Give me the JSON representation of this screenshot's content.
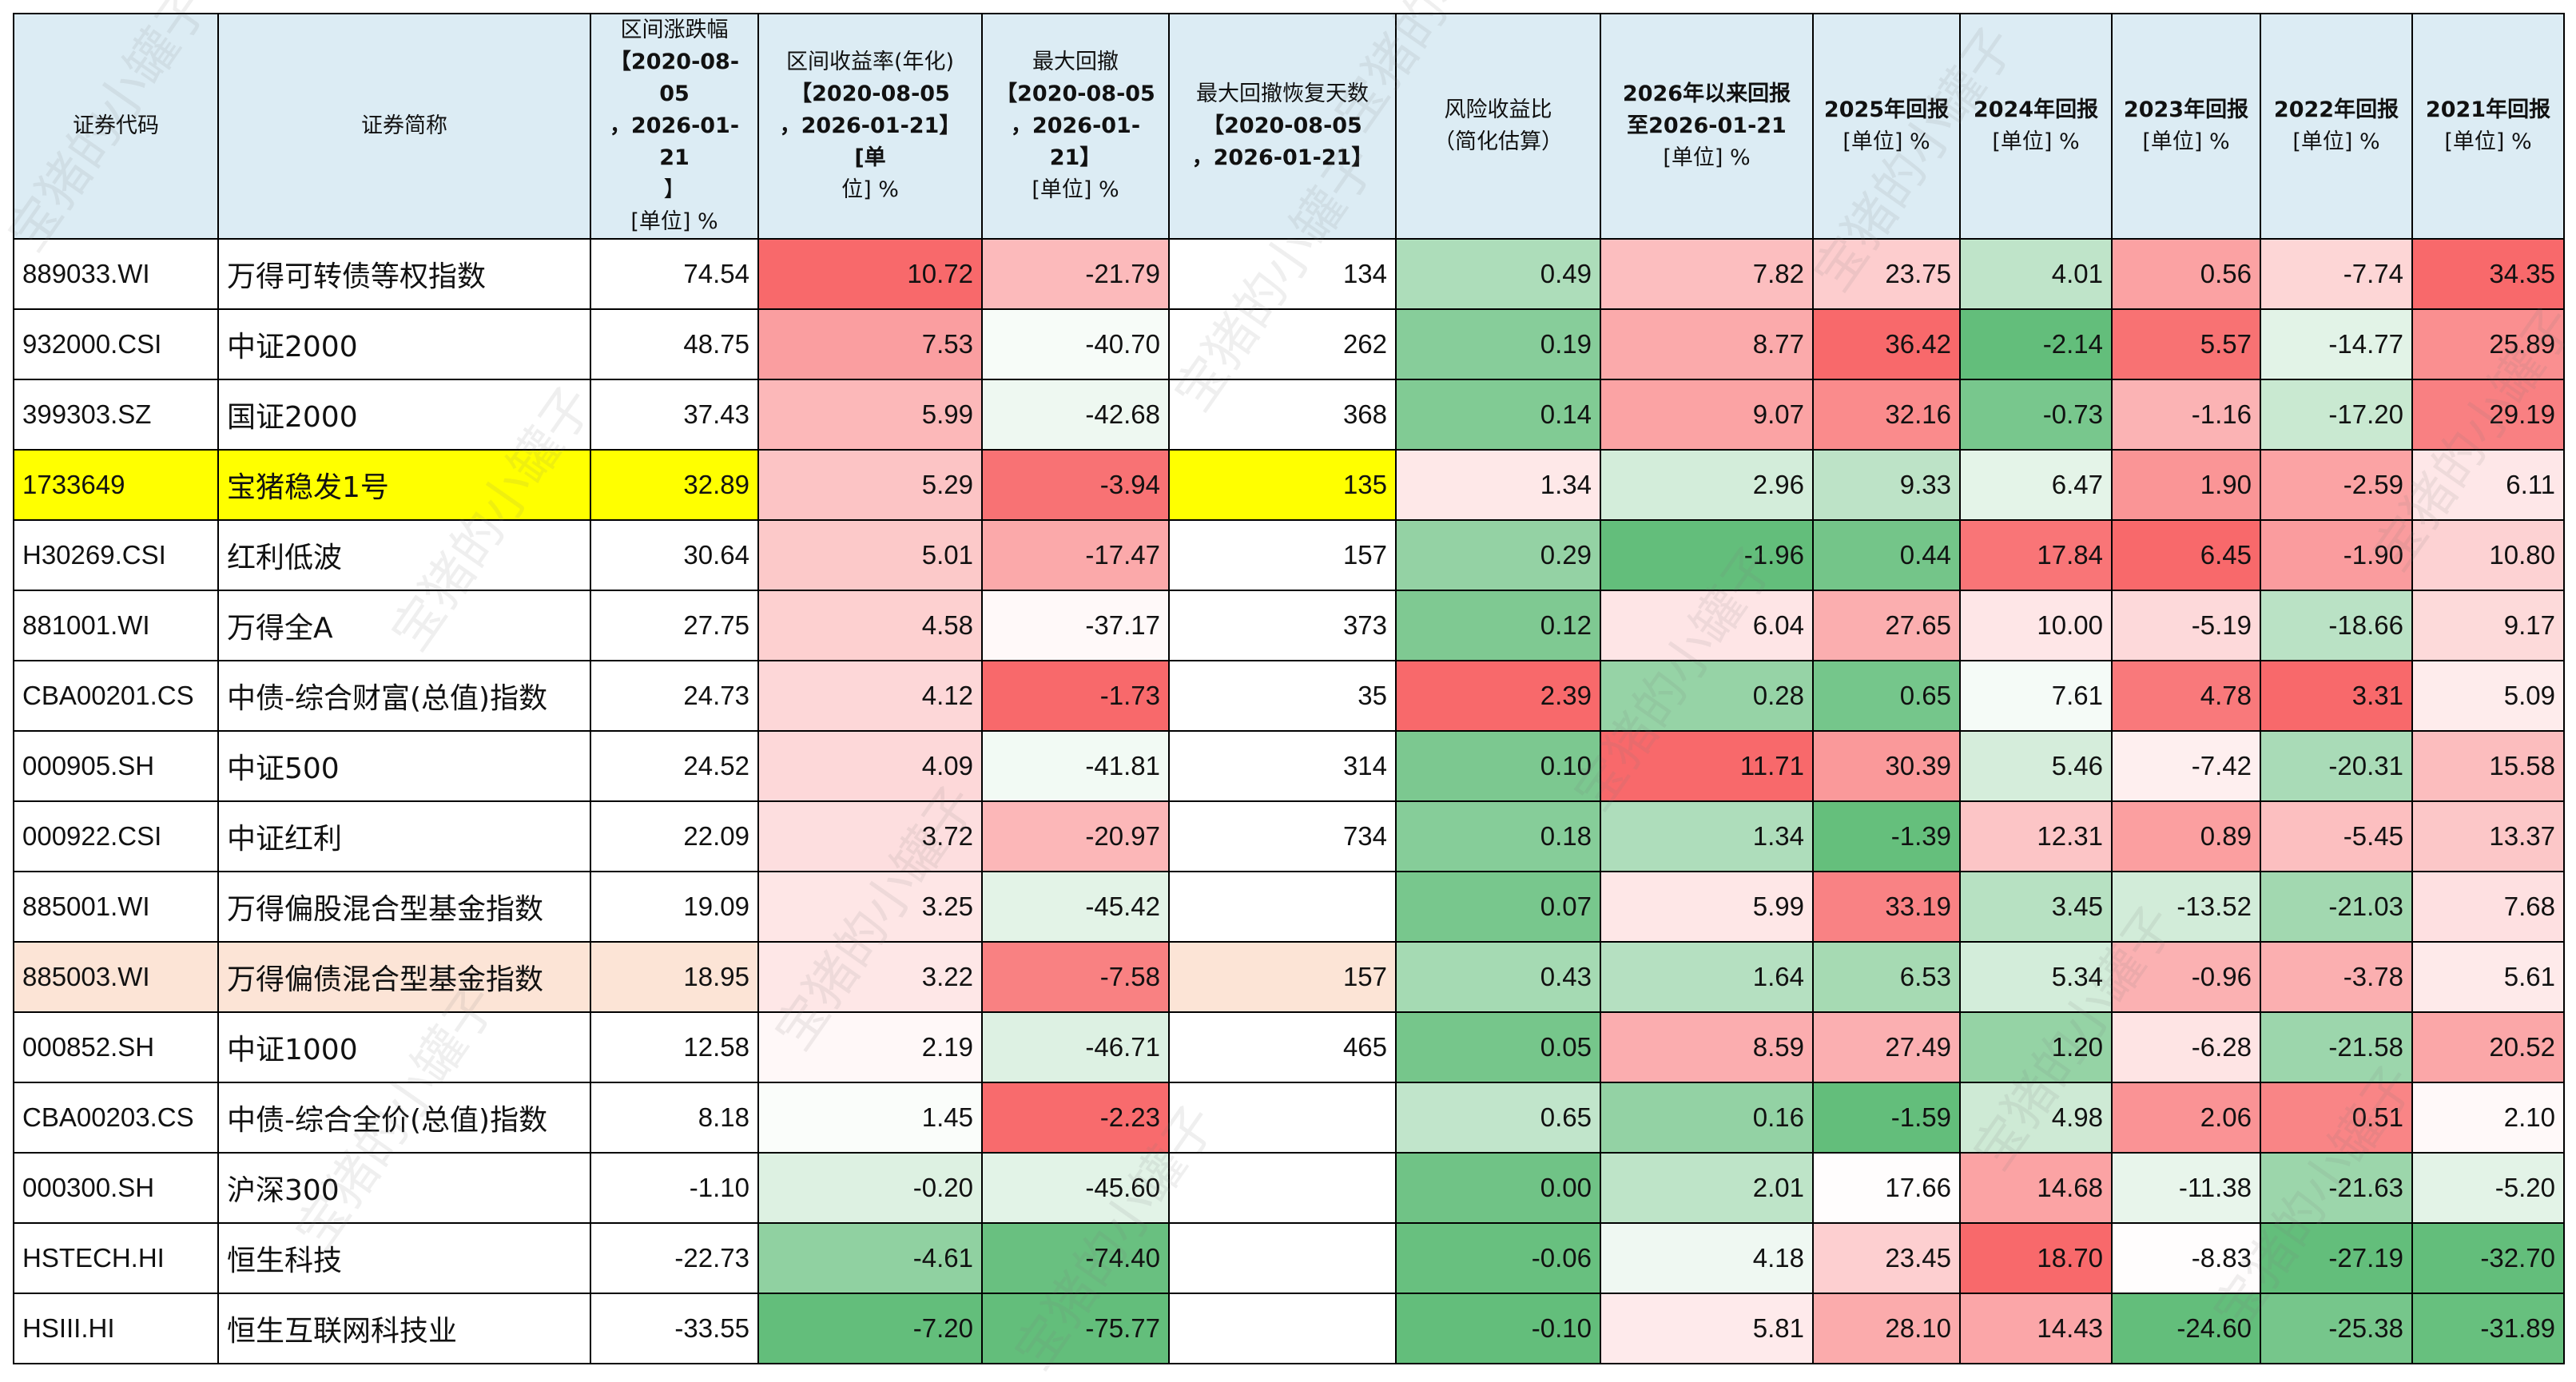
{
  "headers": [
    {
      "key": "code",
      "lines": [
        "证券代码"
      ]
    },
    {
      "key": "name",
      "lines": [
        "证券简称"
      ]
    },
    {
      "key": "chg",
      "lines": [
        "区间涨跌幅",
        "【2020-08-05",
        "，2026-01-21",
        "】",
        "[单位] %"
      ]
    },
    {
      "key": "ann",
      "lines": [
        "区间收益率(年化)",
        "【2020-08-05",
        "，2026-01-21】[单",
        "位] %"
      ]
    },
    {
      "key": "mdd",
      "lines": [
        "最大回撤",
        "【2020-08-05",
        "，2026-01-21】",
        "[单位] %"
      ]
    },
    {
      "key": "rec",
      "lines": [
        "最大回撤恢复天数",
        "【2020-08-05",
        "，2026-01-21】"
      ]
    },
    {
      "key": "rr",
      "lines": [
        "风险收益比",
        "（简化估算）"
      ]
    },
    {
      "key": "y26",
      "lines": [
        "2026年以来回报",
        "至2026-01-21",
        "[单位] %"
      ]
    },
    {
      "key": "y25",
      "lines": [
        "2025年回报",
        "[单位] %"
      ]
    },
    {
      "key": "y24",
      "lines": [
        "2024年回报",
        "[单位] %"
      ]
    },
    {
      "key": "y23",
      "lines": [
        "2023年回报",
        "[单位] %"
      ]
    },
    {
      "key": "y22",
      "lines": [
        "2022年回报",
        "[单位] %"
      ]
    },
    {
      "key": "y21",
      "lines": [
        "2021年回报",
        "[单位] %"
      ]
    }
  ],
  "rows": [
    {
      "code": "889033.WI",
      "name": "万得可转债等权指数",
      "chg": "74.54",
      "ann": "10.72",
      "mdd": "-21.79",
      "rec": "134",
      "rr": "0.49",
      "y26": "7.82",
      "y25": "23.75",
      "y24": "4.01",
      "y23": "0.56",
      "y22": "-7.74",
      "y21": "34.35"
    },
    {
      "code": "932000.CSI",
      "name": "中证2000",
      "chg": "48.75",
      "ann": "7.53",
      "mdd": "-40.70",
      "rec": "262",
      "rr": "0.19",
      "y26": "8.77",
      "y25": "36.42",
      "y24": "-2.14",
      "y23": "5.57",
      "y22": "-14.77",
      "y21": "25.89"
    },
    {
      "code": "399303.SZ",
      "name": "国证2000",
      "chg": "37.43",
      "ann": "5.99",
      "mdd": "-42.68",
      "rec": "368",
      "rr": "0.14",
      "y26": "9.07",
      "y25": "32.16",
      "y24": "-0.73",
      "y23": "-1.16",
      "y22": "-17.20",
      "y21": "29.19"
    },
    {
      "code": "1733649",
      "name": "宝猪稳发1号",
      "chg": "32.89",
      "ann": "5.29",
      "mdd": "-3.94",
      "rec": "135",
      "rr": "1.34",
      "y26": "2.96",
      "y25": "9.33",
      "y24": "6.47",
      "y23": "1.90",
      "y22": "-2.59",
      "y21": "6.11",
      "highlight": "yellow"
    },
    {
      "code": "H30269.CSI",
      "name": "红利低波",
      "chg": "30.64",
      "ann": "5.01",
      "mdd": "-17.47",
      "rec": "157",
      "rr": "0.29",
      "y26": "-1.96",
      "y25": "0.44",
      "y24": "17.84",
      "y23": "6.45",
      "y22": "-1.90",
      "y21": "10.80"
    },
    {
      "code": "881001.WI",
      "name": "万得全A",
      "chg": "27.75",
      "ann": "4.58",
      "mdd": "-37.17",
      "rec": "373",
      "rr": "0.12",
      "y26": "6.04",
      "y25": "27.65",
      "y24": "10.00",
      "y23": "-5.19",
      "y22": "-18.66",
      "y21": "9.17"
    },
    {
      "code": "CBA00201.CS",
      "name": "中债-综合财富(总值)指数",
      "chg": "24.73",
      "ann": "4.12",
      "mdd": "-1.73",
      "rec": "35",
      "rr": "2.39",
      "y26": "0.28",
      "y25": "0.65",
      "y24": "7.61",
      "y23": "4.78",
      "y22": "3.31",
      "y21": "5.09"
    },
    {
      "code": "000905.SH",
      "name": "中证500",
      "chg": "24.52",
      "ann": "4.09",
      "mdd": "-41.81",
      "rec": "314",
      "rr": "0.10",
      "y26": "11.71",
      "y25": "30.39",
      "y24": "5.46",
      "y23": "-7.42",
      "y22": "-20.31",
      "y21": "15.58"
    },
    {
      "code": "000922.CSI",
      "name": "中证红利",
      "chg": "22.09",
      "ann": "3.72",
      "mdd": "-20.97",
      "rec": "734",
      "rr": "0.18",
      "y26": "1.34",
      "y25": "-1.39",
      "y24": "12.31",
      "y23": "0.89",
      "y22": "-5.45",
      "y21": "13.37"
    },
    {
      "code": "885001.WI",
      "name": "万得偏股混合型基金指数",
      "chg": "19.09",
      "ann": "3.25",
      "mdd": "-45.42",
      "rec": "",
      "rr": "0.07",
      "y26": "5.99",
      "y25": "33.19",
      "y24": "3.45",
      "y23": "-13.52",
      "y22": "-21.03",
      "y21": "7.68"
    },
    {
      "code": "885003.WI",
      "name": "万得偏债混合型基金指数",
      "chg": "18.95",
      "ann": "3.22",
      "mdd": "-7.58",
      "rec": "157",
      "rr": "0.43",
      "y26": "1.64",
      "y25": "6.53",
      "y24": "5.34",
      "y23": "-0.96",
      "y22": "-3.78",
      "y21": "5.61",
      "highlight": "peach"
    },
    {
      "code": "000852.SH",
      "name": "中证1000",
      "chg": "12.58",
      "ann": "2.19",
      "mdd": "-46.71",
      "rec": "465",
      "rr": "0.05",
      "y26": "8.59",
      "y25": "27.49",
      "y24": "1.20",
      "y23": "-6.28",
      "y22": "-21.58",
      "y21": "20.52"
    },
    {
      "code": "CBA00203.CS",
      "name": "中债-综合全价(总值)指数",
      "chg": "8.18",
      "ann": "1.45",
      "mdd": "-2.23",
      "rec": "",
      "rr": "0.65",
      "y26": "0.16",
      "y25": "-1.59",
      "y24": "4.98",
      "y23": "2.06",
      "y22": "0.51",
      "y21": "2.10"
    },
    {
      "code": "000300.SH",
      "name": "沪深300",
      "chg": "-1.10",
      "ann": "-0.20",
      "mdd": "-45.60",
      "rec": "",
      "rr": "0.00",
      "y26": "2.01",
      "y25": "17.66",
      "y24": "14.68",
      "y23": "-11.38",
      "y22": "-21.63",
      "y21": "-5.20"
    },
    {
      "code": "HSTECH.HI",
      "name": "恒生科技",
      "chg": "-22.73",
      "ann": "-4.61",
      "mdd": "-74.40",
      "rec": "",
      "rr": "-0.06",
      "y26": "4.18",
      "y25": "23.45",
      "y24": "18.70",
      "y23": "-8.83",
      "y22": "-27.19",
      "y21": "-32.70"
    },
    {
      "code": "HSIII.HI",
      "name": "恒生互联网科技业",
      "chg": "-33.55",
      "ann": "-7.20",
      "mdd": "-75.77",
      "rec": "",
      "rr": "-0.10",
      "y26": "5.81",
      "y25": "28.10",
      "y24": "14.43",
      "y23": "-24.60",
      "y22": "-25.38",
      "y21": "-31.89"
    }
  ],
  "watermark_text": "宝猪的小罐子",
  "colors": {
    "header_bg": "#dcecf4",
    "highlight_yellow": "#ffff00",
    "highlight_peach": "#fce4d6",
    "heat_red": "#f8696b",
    "heat_white": "#ffffff",
    "heat_green": "#63be7b"
  },
  "heatmap_columns": [
    "ann",
    "mdd",
    "rr",
    "y26",
    "y25",
    "y24",
    "y23",
    "y22",
    "y21"
  ],
  "highlight_columns": [
    "code",
    "name",
    "chg",
    "rec"
  ]
}
